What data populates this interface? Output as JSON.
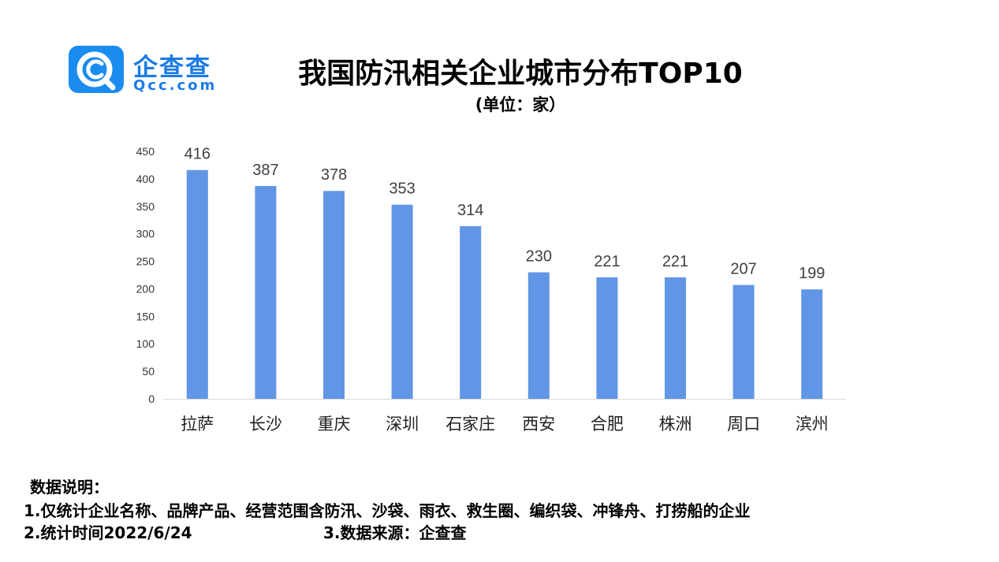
{
  "brand": {
    "name_cn": "企查查",
    "name_en": "Qcc.com"
  },
  "title": "我国防汛相关企业城市分布TOP10",
  "subtitle": "(单位：家）",
  "chart_data": {
    "type": "bar",
    "categories": [
      "拉萨",
      "长沙",
      "重庆",
      "深圳",
      "石家庄",
      "西安",
      "合肥",
      "株洲",
      "周口",
      "滨州"
    ],
    "values": [
      416,
      387,
      378,
      353,
      314,
      230,
      221,
      221,
      207,
      199
    ],
    "yticks": [
      "0",
      "50",
      "100",
      "150",
      "200",
      "250",
      "300",
      "350",
      "400",
      "450"
    ],
    "ylim": [
      0,
      450
    ],
    "bar_color": "#6196e6",
    "grid": false,
    "legend": "none",
    "data_labels": true
  },
  "notes": {
    "heading": "数据说明：",
    "line1": "1.仅统计企业名称、品牌产品、经营范围含防汛、沙袋、雨衣、救生圈、编织袋、冲锋舟、打捞船的企业",
    "line2": "2.统计时间2022/6/24",
    "line3": "3.数据来源：企查查"
  },
  "colors": {
    "brand_blue": "#1a8cf0",
    "bar": "#6196e6",
    "axis": "#d9d9d9"
  },
  "icons": {
    "logo": "qcc-logo-icon"
  }
}
